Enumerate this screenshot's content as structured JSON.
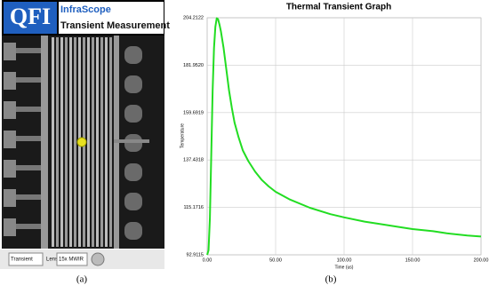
{
  "screenshot": {
    "logo": "QFI",
    "product": "InfraScope",
    "mode_title": "Transient Measurement",
    "mode_select": "Transient",
    "lens_label": "Lens",
    "lens_select": "15x MWIR"
  },
  "captions": [
    "(a)",
    "(b)"
  ],
  "chart_data": {
    "type": "line",
    "title": "Thermal Transient Graph",
    "x_label": "Time (us)",
    "y_label": "Temperature",
    "x": [
      0,
      1,
      2,
      3,
      4,
      5,
      6,
      7,
      8,
      9,
      10,
      12,
      14,
      16,
      18,
      20,
      23,
      26,
      30,
      35,
      40,
      45,
      50,
      60,
      75,
      90,
      100,
      115,
      125,
      140,
      150,
      165,
      175,
      190,
      200
    ],
    "series": [
      {
        "name": "Temperature",
        "color": "#22dd22",
        "values": [
          92.9,
          95,
          110,
          140,
          170,
          190,
          200,
          204,
          203.5,
          201,
          198,
          190,
          180,
          170,
          162,
          155,
          148,
          142,
          137,
          132,
          128,
          125,
          122.5,
          119,
          115,
          112,
          110.5,
          108.5,
          107.5,
          106,
          105,
          104,
          103,
          102,
          101.5
        ]
      }
    ],
    "xlim": [
      0,
      200
    ],
    "xticks": [
      {
        "value": 0,
        "label": "0.00"
      },
      {
        "value": 50,
        "label": "50.00"
      },
      {
        "value": 100,
        "label": "100.00"
      },
      {
        "value": 150,
        "label": "150.00"
      },
      {
        "value": 200,
        "label": "200.00"
      }
    ],
    "ylim": [
      92.9115,
      204.2122
    ],
    "yticks": [
      92.9115,
      115.1716,
      137.4318,
      159.6919,
      {
        "value": 181.952,
        "label": "181.9520"
      },
      204.2122
    ],
    "grid": true
  }
}
